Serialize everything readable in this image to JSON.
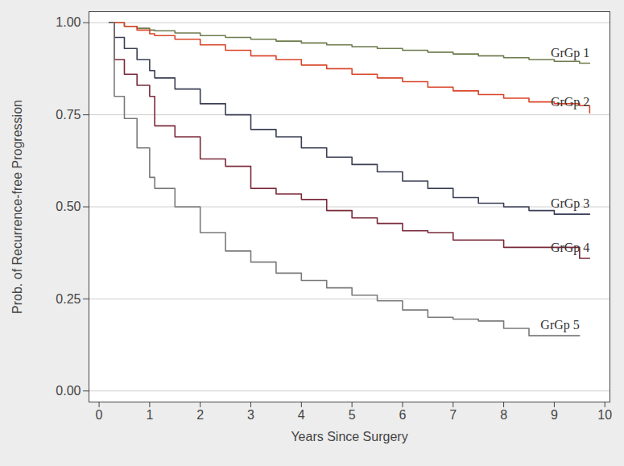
{
  "chart_data": {
    "type": "line",
    "xlabel": "Years Since Surgery",
    "ylabel": "Prob. of Recurrence-free Progression",
    "xlim": [
      -0.2,
      10.1
    ],
    "ylim": [
      -0.03,
      1.03
    ],
    "xticks": [
      0,
      1,
      2,
      3,
      4,
      5,
      6,
      7,
      8,
      9,
      10
    ],
    "yticks": [
      {
        "value": 0,
        "label": "0.00"
      },
      {
        "value": 0.25,
        "label": "0.25"
      },
      {
        "value": 0.5,
        "label": "0.50"
      },
      {
        "value": 0.75,
        "label": "0.75"
      },
      {
        "value": 1,
        "label": "1.00"
      }
    ],
    "grid": true,
    "line_style": "step",
    "x": [
      0.2,
      0.3,
      0.5,
      0.75,
      1,
      1.1,
      1.5,
      2,
      2.5,
      3,
      3.5,
      4,
      4.5,
      5,
      5.5,
      6,
      6.5,
      7,
      7.5,
      8,
      8.5,
      9,
      9.5,
      9.7
    ],
    "series": [
      {
        "name": "GrGp 1",
        "color": "#6e7b4c",
        "values": [
          1.0,
          1.0,
          0.99,
          0.985,
          0.98,
          0.978,
          0.972,
          0.965,
          0.96,
          0.955,
          0.95,
          0.945,
          0.94,
          0.935,
          0.93,
          0.925,
          0.92,
          0.915,
          0.91,
          0.905,
          0.9,
          0.895,
          0.89,
          0.89
        ]
      },
      {
        "name": "GrGp 2",
        "color": "#d9462a",
        "values": [
          1.0,
          1.0,
          0.99,
          0.98,
          0.97,
          0.965,
          0.955,
          0.94,
          0.925,
          0.91,
          0.9,
          0.885,
          0.875,
          0.86,
          0.85,
          0.84,
          0.825,
          0.815,
          0.805,
          0.795,
          0.785,
          0.78,
          0.775,
          0.755
        ]
      },
      {
        "name": "GrGp 3",
        "color": "#3a3f55",
        "values": [
          1.0,
          0.96,
          0.93,
          0.9,
          0.87,
          0.85,
          0.82,
          0.78,
          0.75,
          0.71,
          0.69,
          0.66,
          0.635,
          0.615,
          0.595,
          0.57,
          0.55,
          0.525,
          0.51,
          0.5,
          0.49,
          0.48,
          0.48,
          0.48
        ]
      },
      {
        "name": "GrGp 4",
        "color": "#7a2a3a",
        "values": [
          1.0,
          0.9,
          0.86,
          0.83,
          0.8,
          0.72,
          0.69,
          0.63,
          0.61,
          0.55,
          0.535,
          0.52,
          0.49,
          0.47,
          0.455,
          0.435,
          0.43,
          0.41,
          0.41,
          0.39,
          0.39,
          0.39,
          0.36,
          0.36
        ]
      },
      {
        "name": "GrGp 5",
        "color": "#7a7a7a",
        "values": [
          1.0,
          0.8,
          0.74,
          0.66,
          0.58,
          0.55,
          0.5,
          0.43,
          0.38,
          0.35,
          0.32,
          0.3,
          0.28,
          0.26,
          0.245,
          0.22,
          0.2,
          0.195,
          0.19,
          0.17,
          0.15,
          0.15,
          0.15,
          null
        ]
      }
    ]
  }
}
